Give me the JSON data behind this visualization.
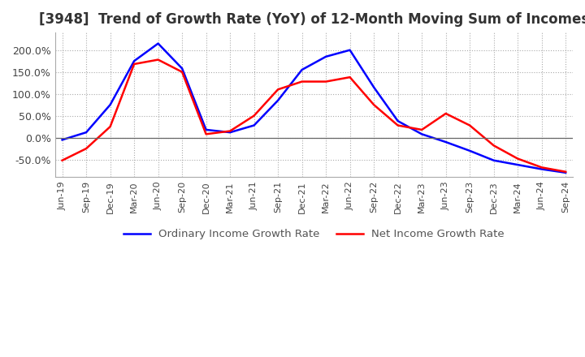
{
  "title": "[3948]  Trend of Growth Rate (YoY) of 12-Month Moving Sum of Incomes",
  "title_fontsize": 12,
  "ylim": [
    -90,
    240
  ],
  "yticks": [
    -50,
    0,
    50,
    100,
    150,
    200
  ],
  "ytick_labels": [
    "-50.0%",
    "0.0%",
    "50.0%",
    "100.0%",
    "150.0%",
    "200.0%"
  ],
  "grid_color": "#aaaaaa",
  "background_color": "#ffffff",
  "plot_bg_color": "#ffffff",
  "ordinary_color": "#0000ff",
  "net_color": "#ff0000",
  "legend_labels": [
    "Ordinary Income Growth Rate",
    "Net Income Growth Rate"
  ],
  "x_dates": [
    "Jun-19",
    "Sep-19",
    "Dec-19",
    "Mar-20",
    "Jun-20",
    "Sep-20",
    "Dec-20",
    "Mar-21",
    "Jun-21",
    "Sep-21",
    "Dec-21",
    "Mar-22",
    "Jun-22",
    "Sep-22",
    "Dec-22",
    "Mar-23",
    "Jun-23",
    "Sep-23",
    "Dec-23",
    "Mar-24",
    "Jun-24",
    "Sep-24"
  ],
  "ordinary_values": [
    -5,
    12,
    75,
    175,
    215,
    158,
    18,
    12,
    28,
    85,
    155,
    185,
    200,
    115,
    38,
    8,
    -10,
    -30,
    -52,
    -62,
    -72,
    -80
  ],
  "net_values": [
    -52,
    -25,
    25,
    168,
    178,
    150,
    8,
    15,
    50,
    110,
    128,
    128,
    138,
    75,
    28,
    18,
    55,
    28,
    -18,
    -48,
    -68,
    -78
  ]
}
